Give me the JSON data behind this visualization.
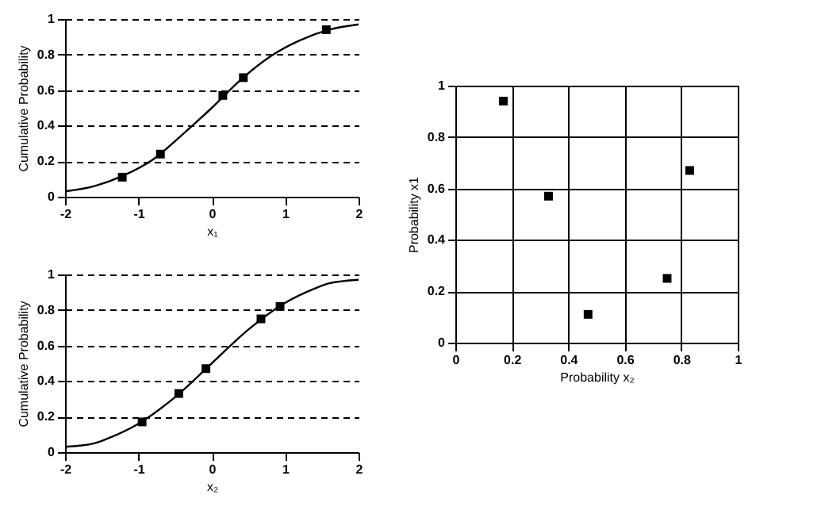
{
  "chart_data": [
    {
      "type": "line",
      "xlabel": "x₁",
      "ylabel": "Cumulative Probability",
      "xlim": [
        -2,
        2
      ],
      "ylim": [
        0,
        1
      ],
      "xticks": [
        -2,
        -1,
        0,
        1,
        2
      ],
      "yticks": [
        0,
        0.2,
        0.4,
        0.6,
        0.8,
        1
      ],
      "grid": "y",
      "series": [
        {
          "color": "#000000",
          "marker": "none",
          "x": [
            -2,
            -1.6,
            -1.2,
            -0.8,
            -0.4,
            0,
            0.4,
            0.8,
            1.2,
            1.6,
            2
          ],
          "values": [
            0.03,
            0.06,
            0.12,
            0.21,
            0.35,
            0.5,
            0.66,
            0.79,
            0.88,
            0.94,
            0.97
          ]
        },
        {
          "type": "scatter",
          "color": "#000000",
          "marker": "square",
          "x": [
            -1.22,
            -0.7,
            0.15,
            0.43,
            1.56
          ],
          "values": [
            0.11,
            0.24,
            0.57,
            0.67,
            0.94
          ]
        }
      ]
    },
    {
      "type": "line",
      "xlabel": "x₂",
      "ylabel": "Cumulative Probability",
      "xlim": [
        -2,
        2
      ],
      "ylim": [
        0,
        1
      ],
      "xticks": [
        -2,
        -1,
        0,
        1,
        2
      ],
      "yticks": [
        0,
        0.2,
        0.4,
        0.6,
        0.8,
        1
      ],
      "grid": "y",
      "series": [
        {
          "color": "#000000",
          "marker": "none",
          "x": [
            -2,
            -1.6,
            -1.4,
            -1,
            -0.5,
            0,
            0.5,
            1,
            1.4,
            1.6,
            2
          ],
          "values": [
            0.03,
            0.05,
            0.08,
            0.16,
            0.31,
            0.5,
            0.69,
            0.84,
            0.92,
            0.95,
            0.97
          ]
        },
        {
          "type": "scatter",
          "color": "#000000",
          "marker": "square",
          "x": [
            -0.95,
            -0.45,
            -0.08,
            0.67,
            0.93
          ],
          "values": [
            0.17,
            0.33,
            0.47,
            0.75,
            0.82
          ]
        }
      ]
    },
    {
      "type": "scatter",
      "xlabel": "Probability x₂",
      "ylabel": "Probability x1",
      "xlim": [
        0,
        1
      ],
      "ylim": [
        0,
        1
      ],
      "xticks": [
        0,
        0.2,
        0.4,
        0.6,
        0.8,
        1
      ],
      "yticks": [
        0,
        0.2,
        0.4,
        0.6,
        0.8,
        1
      ],
      "grid": true,
      "series": [
        {
          "color": "#000000",
          "marker": "square",
          "x": [
            0.17,
            0.33,
            0.47,
            0.75,
            0.83
          ],
          "values": [
            0.94,
            0.57,
            0.11,
            0.25,
            0.67
          ]
        }
      ]
    }
  ]
}
